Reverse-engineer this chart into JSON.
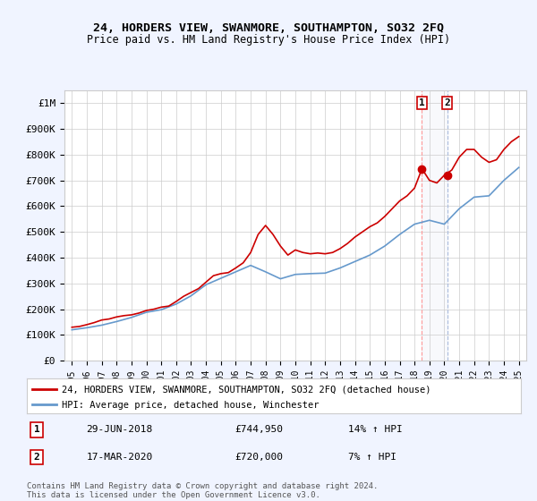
{
  "title": "24, HORDERS VIEW, SWANMORE, SOUTHAMPTON, SO32 2FQ",
  "subtitle": "Price paid vs. HM Land Registry's House Price Index (HPI)",
  "legend_line1": "24, HORDERS VIEW, SWANMORE, SOUTHAMPTON, SO32 2FQ (detached house)",
  "legend_line2": "HPI: Average price, detached house, Winchester",
  "event1_date": "29-JUN-2018",
  "event1_price": "£744,950",
  "event1_hpi": "14% ↑ HPI",
  "event2_date": "17-MAR-2020",
  "event2_price": "£720,000",
  "event2_hpi": "7% ↑ HPI",
  "footer": "Contains HM Land Registry data © Crown copyright and database right 2024.\nThis data is licensed under the Open Government Licence v3.0.",
  "ylim_min": 0,
  "ylim_max": 1050000,
  "yticks": [
    0,
    100000,
    200000,
    300000,
    400000,
    500000,
    600000,
    700000,
    800000,
    900000,
    1000000
  ],
  "ytick_labels": [
    "£0",
    "£100K",
    "£200K",
    "£300K",
    "£400K",
    "£500K",
    "£600K",
    "£700K",
    "£800K",
    "£900K",
    "£1M"
  ],
  "event1_x": 2018.5,
  "event2_x": 2020.2,
  "line1_color": "#cc0000",
  "line2_color": "#6699cc",
  "event_vline_color": "#cc0000",
  "event_vline_style": "dashed",
  "background_color": "#f0f4ff",
  "plot_bg_color": "#ffffff",
  "grid_color": "#cccccc",
  "hpi_years": [
    1995,
    1996,
    1997,
    1998,
    1999,
    2000,
    2001,
    2002,
    2003,
    2004,
    2005,
    2006,
    2007,
    2008,
    2009,
    2010,
    2011,
    2012,
    2013,
    2014,
    2015,
    2016,
    2017,
    2018,
    2019,
    2020,
    2021,
    2022,
    2023,
    2024,
    2025
  ],
  "hpi_values": [
    120000,
    128000,
    138000,
    152000,
    168000,
    188000,
    198000,
    220000,
    252000,
    295000,
    320000,
    345000,
    370000,
    345000,
    318000,
    335000,
    338000,
    340000,
    360000,
    385000,
    410000,
    445000,
    490000,
    530000,
    545000,
    530000,
    590000,
    635000,
    640000,
    700000,
    750000
  ],
  "pp_years": [
    1995.0,
    1995.5,
    1996.0,
    1996.5,
    1997.0,
    1997.5,
    1998.0,
    1998.5,
    1999.0,
    1999.5,
    2000.0,
    2000.5,
    2001.0,
    2001.5,
    2002.0,
    2002.5,
    2003.0,
    2003.5,
    2004.0,
    2004.5,
    2005.0,
    2005.5,
    2006.0,
    2006.5,
    2007.0,
    2007.5,
    2008.0,
    2008.5,
    2009.0,
    2009.5,
    2010.0,
    2010.5,
    2011.0,
    2011.5,
    2012.0,
    2012.5,
    2013.0,
    2013.5,
    2014.0,
    2014.5,
    2015.0,
    2015.5,
    2016.0,
    2016.5,
    2017.0,
    2017.5,
    2018.0,
    2018.5,
    2019.0,
    2019.5,
    2020.0,
    2020.5,
    2021.0,
    2021.5,
    2022.0,
    2022.5,
    2023.0,
    2023.5,
    2024.0,
    2024.5,
    2025.0
  ],
  "pp_values": [
    130000,
    133000,
    140000,
    148000,
    158000,
    162000,
    170000,
    175000,
    178000,
    185000,
    195000,
    200000,
    208000,
    212000,
    230000,
    250000,
    265000,
    280000,
    305000,
    330000,
    338000,
    342000,
    360000,
    380000,
    420000,
    490000,
    525000,
    490000,
    445000,
    410000,
    430000,
    420000,
    415000,
    418000,
    415000,
    420000,
    435000,
    455000,
    480000,
    500000,
    520000,
    535000,
    560000,
    590000,
    620000,
    640000,
    670000,
    744950,
    700000,
    690000,
    720000,
    740000,
    790000,
    820000,
    820000,
    790000,
    770000,
    780000,
    820000,
    850000,
    870000
  ],
  "xtick_years": [
    1995,
    1996,
    1997,
    1998,
    1999,
    2000,
    2001,
    2002,
    2003,
    2004,
    2005,
    2006,
    2007,
    2008,
    2009,
    2010,
    2011,
    2012,
    2013,
    2014,
    2015,
    2016,
    2017,
    2018,
    2019,
    2020,
    2021,
    2022,
    2023,
    2024,
    2025
  ]
}
